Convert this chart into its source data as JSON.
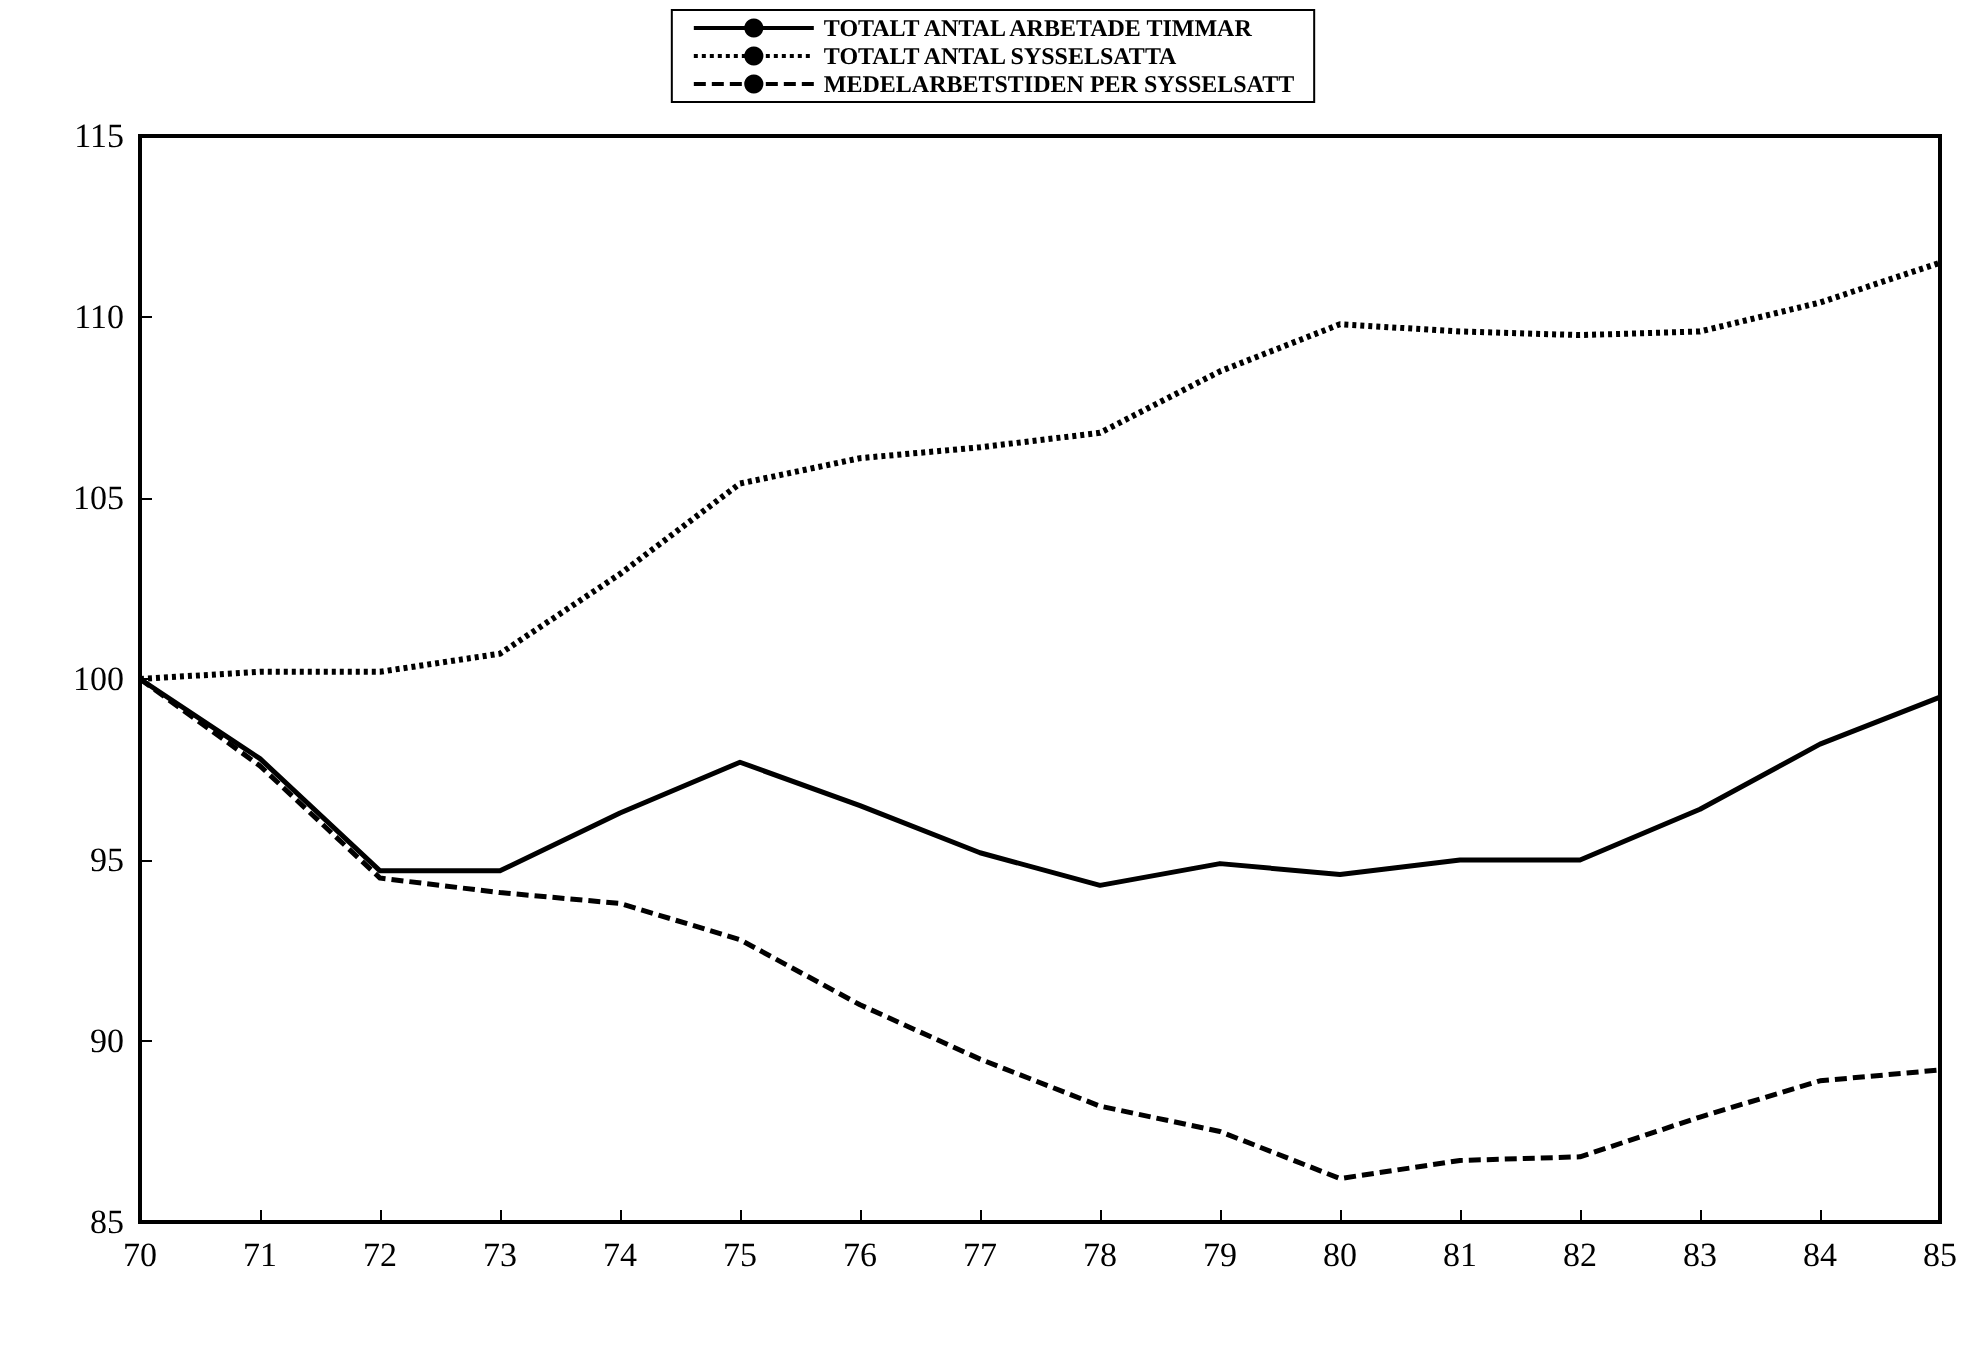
{
  "chart_data": {
    "type": "line",
    "x": [
      70,
      71,
      72,
      73,
      74,
      75,
      76,
      77,
      78,
      79,
      80,
      81,
      82,
      83,
      84,
      85
    ],
    "series": [
      {
        "name": "TOTALT ANTAL ARBETADE TIMMAR",
        "color": "#000000",
        "line_style": "solid",
        "values": [
          100,
          97.8,
          94.7,
          94.7,
          96.3,
          97.7,
          96.5,
          95.2,
          94.3,
          94.9,
          94.6,
          95.0,
          95.0,
          96.4,
          98.2,
          99.5
        ]
      },
      {
        "name": "TOTALT ANTAL SYSSELSATTA",
        "color": "#000000",
        "line_style": "dotted",
        "values": [
          100,
          100.2,
          100.2,
          100.7,
          102.9,
          105.4,
          106.1,
          106.4,
          106.8,
          108.5,
          109.8,
          109.6,
          109.5,
          109.6,
          110.4,
          111.5
        ]
      },
      {
        "name": "MEDELARBETSTIDEN PER SYSSELSATT",
        "color": "#000000",
        "line_style": "dashed",
        "values": [
          100,
          97.6,
          94.5,
          94.1,
          93.8,
          92.8,
          91.0,
          89.5,
          88.2,
          87.5,
          86.2,
          86.7,
          86.8,
          87.9,
          88.9,
          89.2
        ]
      }
    ],
    "xlim": [
      70,
      85
    ],
    "xticks": [
      70,
      71,
      72,
      73,
      74,
      75,
      76,
      77,
      78,
      79,
      80,
      81,
      82,
      83,
      84,
      85
    ],
    "ylim": [
      85,
      115
    ],
    "yticks": [
      85,
      90,
      95,
      100,
      105,
      110,
      115
    ],
    "grid": false,
    "legend": "top",
    "marker": "none"
  }
}
